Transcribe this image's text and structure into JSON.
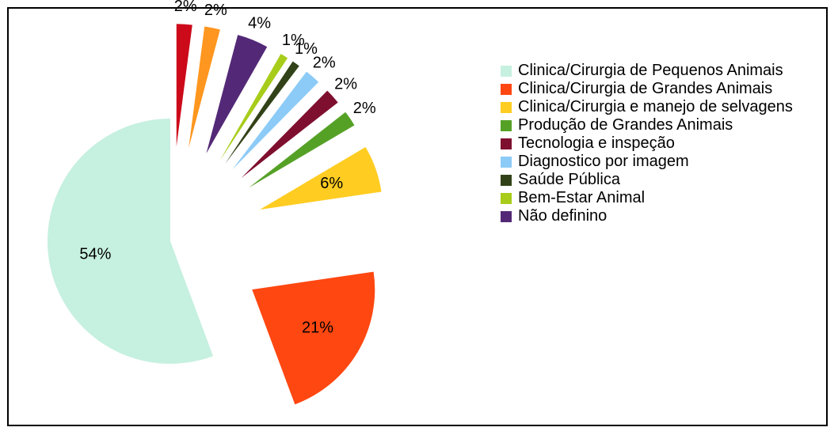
{
  "chart_data": {
    "type": "pie",
    "categories": [
      "Clinica/Cirurgia de Pequenos Animais",
      "Clinica/Cirurgia de Grandes Animais",
      "Clinica/Cirurgia e manejo de selvagens",
      "Produção de Grandes Animais",
      "Tecnologia e inspeção",
      "Diagnostico por imagem",
      "Saúde Pública",
      "Bem-Estar Animal",
      "Não definino",
      null,
      null
    ],
    "values": [
      54,
      21,
      6,
      2,
      2,
      2,
      1,
      1,
      4,
      2,
      2
    ],
    "value_labels": [
      "54%",
      "21%",
      "6%",
      "2%",
      "2%",
      "2%",
      "1%",
      "1%",
      "4%",
      "2%",
      "2%"
    ],
    "colors": [
      "#c6f0e0",
      "#ff4711",
      "#ffcc22",
      "#55a126",
      "#7f0f2f",
      "#8ccbf7",
      "#324218",
      "#a7cc1a",
      "#532977",
      "#ff961f",
      "#cc0a1a"
    ],
    "exploded": true,
    "legend": "right"
  }
}
